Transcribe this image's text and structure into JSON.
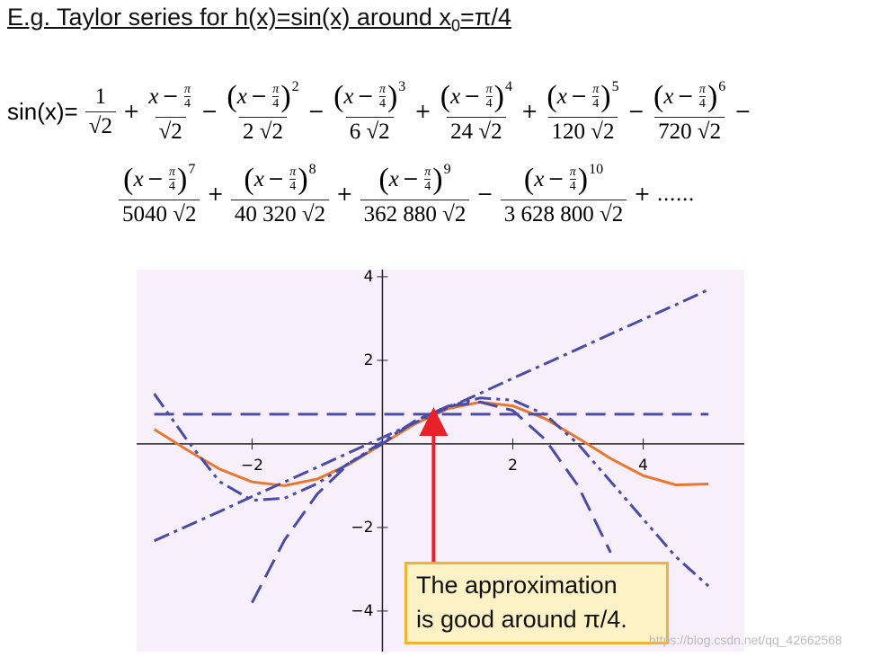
{
  "title": {
    "main": "E.g. Taylor series for h(x)=sin(x) around x",
    "sub": "0",
    "end": "=π/4"
  },
  "formula": {
    "lhs": "sin(x)=",
    "x": "x",
    "minus": "−",
    "pi": "π",
    "four": "4",
    "first_num": "1",
    "tail": "+ ......",
    "terms": [
      {
        "den": "√2"
      },
      {
        "op": "+",
        "den": "√2"
      },
      {
        "op": "−",
        "exp": "2",
        "den": "2 √2"
      },
      {
        "op": "−",
        "exp": "3",
        "den": "6 √2"
      },
      {
        "op": "+",
        "exp": "4",
        "den": "24 √2"
      },
      {
        "op": "+",
        "exp": "5",
        "den": "120 √2"
      },
      {
        "op": "−",
        "exp": "6",
        "den": "720 √2"
      },
      {
        "op": "−",
        "exp": "7",
        "den": "5040 √2"
      },
      {
        "op": "+",
        "exp": "8",
        "den": "40 320 √2"
      },
      {
        "op": "+",
        "exp": "9",
        "den": "362 880 √2"
      },
      {
        "op": "−",
        "exp": "10",
        "den": "3 628 800 √2"
      }
    ]
  },
  "chart_data": {
    "type": "line",
    "x": [
      -3.5,
      -3,
      -2.5,
      -2,
      -1.5,
      -1,
      -0.5,
      0,
      0.5,
      1,
      1.5,
      2,
      2.5,
      3,
      3.5,
      4,
      4.5,
      5
    ],
    "series": [
      {
        "color": "#e8782e",
        "style": "solid",
        "values": [
          0.35,
          -0.14,
          -0.6,
          -0.91,
          -1.0,
          -0.84,
          -0.48,
          0,
          0.48,
          0.84,
          1.0,
          0.91,
          0.6,
          0.14,
          -0.35,
          -0.76,
          -0.98,
          -0.96
        ]
      },
      {
        "color": "#4a4aa8",
        "style": "dash",
        "values": [
          0.71,
          0.71,
          0.71,
          0.71,
          0.71,
          0.71,
          0.71,
          0.71,
          0.71,
          0.71,
          0.71,
          0.71,
          0.71,
          0.71,
          0.71,
          0.71,
          0.71,
          0.71
        ]
      },
      {
        "color": "#4a4aa8",
        "style": "dashdot",
        "values": [
          -2.32,
          -1.97,
          -1.62,
          -1.26,
          -0.91,
          -0.56,
          -0.2,
          0.15,
          0.51,
          0.86,
          1.21,
          1.57,
          1.92,
          2.27,
          2.63,
          2.98,
          3.33,
          3.69
        ]
      },
      {
        "color": "#4a4aa8",
        "style": "dash",
        "values": [
          null,
          null,
          null,
          -3.8,
          -2.3,
          -1.2,
          -0.45,
          0,
          0.55,
          0.9,
          1.0,
          0.8,
          0.1,
          -1.0,
          -2.6,
          null,
          null,
          null
        ]
      },
      {
        "color": "#4a4aa8",
        "style": "dashdotdot",
        "values": [
          1.2,
          0.1,
          -0.9,
          -1.35,
          -1.3,
          -0.95,
          -0.45,
          0.05,
          0.55,
          0.9,
          1.1,
          1.05,
          0.7,
          0.0,
          -0.9,
          -1.8,
          -2.7,
          -3.4
        ]
      }
    ],
    "xlim": [
      -3.77,
      5.55
    ],
    "ylim": [
      -4.97,
      4.17
    ],
    "xticks": [
      {
        "value": -2,
        "label": "−2"
      },
      2,
      4
    ],
    "yticks": [
      {
        "value": -4,
        "label": "−4"
      },
      {
        "value": -2,
        "label": "−2"
      },
      2,
      4
    ],
    "annotation": {
      "lines": [
        "The approximation",
        "is good around π/4."
      ],
      "xy": [
        0.785,
        0.707
      ],
      "color": "#e8202a"
    }
  },
  "watermark": "https://blog.csdn.net/qq_42662568"
}
